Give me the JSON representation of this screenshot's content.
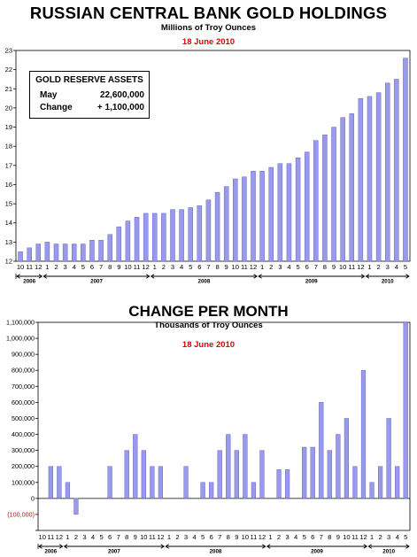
{
  "chart_data": [
    {
      "type": "bar",
      "title": "RUSSIAN CENTRAL BANK GOLD HOLDINGS",
      "subtitle": "Millions of Troy Ounces",
      "date": "18 June 2010",
      "categories": [
        "10",
        "11",
        "12",
        "1",
        "2",
        "3",
        "4",
        "5",
        "6",
        "7",
        "8",
        "9",
        "10",
        "11",
        "12",
        "1",
        "2",
        "3",
        "4",
        "5",
        "6",
        "7",
        "8",
        "9",
        "10",
        "11",
        "12",
        "1",
        "2",
        "3",
        "4",
        "5",
        "6",
        "7",
        "8",
        "9",
        "10",
        "11",
        "12",
        "1",
        "2",
        "3",
        "4",
        "5"
      ],
      "values": [
        12.5,
        12.7,
        12.9,
        13.0,
        12.9,
        12.9,
        12.9,
        12.9,
        13.1,
        13.1,
        13.4,
        13.8,
        14.1,
        14.3,
        14.5,
        14.5,
        14.5,
        14.7,
        14.7,
        14.8,
        14.9,
        15.2,
        15.6,
        15.9,
        16.3,
        16.4,
        16.7,
        16.7,
        16.9,
        17.1,
        17.1,
        17.4,
        17.7,
        18.3,
        18.6,
        19.0,
        19.5,
        19.7,
        20.5,
        20.6,
        20.8,
        21.3,
        21.5,
        22.6
      ],
      "ylim": [
        12,
        23
      ],
      "yticks": [
        "12",
        "13",
        "14",
        "15",
        "16",
        "17",
        "18",
        "19",
        "20",
        "21",
        "22",
        "23"
      ],
      "years": [
        {
          "label": "2006",
          "start": 0,
          "end": 2
        },
        {
          "label": "2007",
          "start": 3,
          "end": 14
        },
        {
          "label": "2008",
          "start": 15,
          "end": 26
        },
        {
          "label": "2009",
          "start": 27,
          "end": 38
        },
        {
          "label": "2010",
          "start": 39,
          "end": 43
        }
      ],
      "bar_color": "#9999ee",
      "annotation_box": {
        "title": "GOLD RESERVE ASSETS",
        "rows": [
          {
            "label": "May",
            "value": "22,600,000"
          },
          {
            "label": "Change",
            "value": "+ 1,100,000"
          }
        ]
      }
    },
    {
      "type": "bar",
      "title": "CHANGE PER MONTH",
      "subtitle": "Thousands of Troy Ounces",
      "date": "18 June 2010",
      "categories": [
        "10",
        "11",
        "12",
        "1",
        "2",
        "3",
        "4",
        "5",
        "6",
        "7",
        "8",
        "9",
        "10",
        "11",
        "12",
        "1",
        "2",
        "3",
        "4",
        "5",
        "6",
        "7",
        "8",
        "9",
        "10",
        "11",
        "12",
        "1",
        "2",
        "3",
        "4",
        "5",
        "6",
        "7",
        "8",
        "9",
        "10",
        "11",
        "12",
        "1",
        "2",
        "3",
        "4",
        "5"
      ],
      "values": [
        0,
        200000,
        200000,
        100000,
        -100000,
        0,
        0,
        0,
        200000,
        0,
        300000,
        400000,
        300000,
        200000,
        200000,
        0,
        0,
        200000,
        0,
        100000,
        100000,
        300000,
        400000,
        300000,
        400000,
        100000,
        300000,
        0,
        180000,
        180000,
        0,
        320000,
        320000,
        600000,
        300000,
        400000,
        500000,
        200000,
        800000,
        100000,
        200000,
        500000,
        200000,
        1100000
      ],
      "ylim": [
        -200000,
        1100000
      ],
      "yticks": [
        "",
        "(100,000)",
        "0",
        "100,000",
        "200,000",
        "300,000",
        "400,000",
        "500,000",
        "600,000",
        "700,000",
        "800,000",
        "900,000",
        "1,000,000",
        "1,100,000"
      ],
      "years": [
        {
          "label": "2006",
          "start": 0,
          "end": 2
        },
        {
          "label": "2007",
          "start": 3,
          "end": 14
        },
        {
          "label": "2008",
          "start": 15,
          "end": 26
        },
        {
          "label": "2009",
          "start": 27,
          "end": 38
        },
        {
          "label": "2010",
          "start": 39,
          "end": 43
        }
      ],
      "bar_color": "#9999ee",
      "negative_tick_color": "#e00000"
    }
  ]
}
